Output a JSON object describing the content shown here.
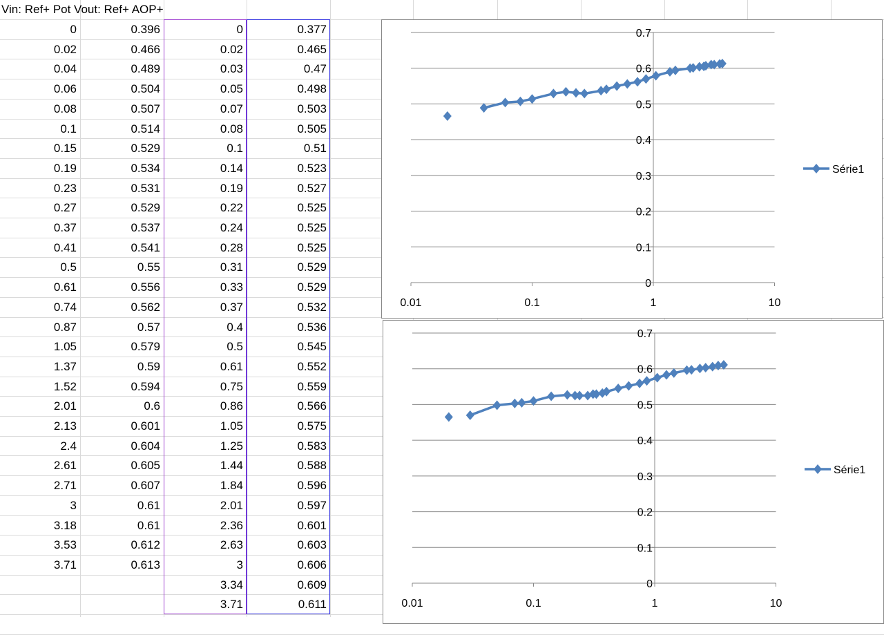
{
  "sheet": {
    "title": "Vin: Ref+ Pot Vout: Ref+ AOP+",
    "colA": [
      "0",
      "0.02",
      "0.04",
      "0.06",
      "0.08",
      "0.1",
      "0.15",
      "0.19",
      "0.23",
      "0.27",
      "0.37",
      "0.41",
      "0.5",
      "0.61",
      "0.74",
      "0.87",
      "1.05",
      "1.37",
      "1.52",
      "2.01",
      "2.13",
      "2.4",
      "2.61",
      "2.71",
      "3",
      "3.18",
      "3.53",
      "3.71"
    ],
    "colB": [
      "0.396",
      "0.466",
      "0.489",
      "0.504",
      "0.507",
      "0.514",
      "0.529",
      "0.534",
      "0.531",
      "0.529",
      "0.537",
      "0.541",
      "0.55",
      "0.556",
      "0.562",
      "0.57",
      "0.579",
      "0.59",
      "0.594",
      "0.6",
      "0.601",
      "0.604",
      "0.605",
      "0.607",
      "0.61",
      "0.61",
      "0.612",
      "0.613"
    ],
    "colC": [
      "0",
      "0.02",
      "0.03",
      "0.05",
      "0.07",
      "0.08",
      "0.1",
      "0.14",
      "0.19",
      "0.22",
      "0.24",
      "0.28",
      "0.31",
      "0.33",
      "0.37",
      "0.4",
      "0.5",
      "0.61",
      "0.75",
      "0.86",
      "1.05",
      "1.25",
      "1.44",
      "1.84",
      "2.01",
      "2.36",
      "2.63",
      "3",
      "3.34",
      "3.71"
    ],
    "colD": [
      "0.377",
      "0.465",
      "0.47",
      "0.498",
      "0.503",
      "0.505",
      "0.51",
      "0.523",
      "0.527",
      "0.525",
      "0.525",
      "0.525",
      "0.529",
      "0.529",
      "0.532",
      "0.536",
      "0.545",
      "0.552",
      "0.559",
      "0.566",
      "0.575",
      "0.583",
      "0.588",
      "0.596",
      "0.597",
      "0.601",
      "0.603",
      "0.606",
      "0.609",
      "0.611"
    ]
  },
  "chart_data": [
    {
      "type": "scatter",
      "series_style": "line-with-diamond-markers",
      "color": "#4f81bd",
      "xscale": "log",
      "xlim": [
        0.01,
        10
      ],
      "ylim": [
        0,
        0.7
      ],
      "xticks": [
        "0.01",
        "0.1",
        "1",
        "10"
      ],
      "yticks": [
        "0",
        "0.1",
        "0.2",
        "0.3",
        "0.4",
        "0.5",
        "0.6",
        "0.7"
      ],
      "legend": "right",
      "series": [
        {
          "name": "Série1",
          "source": "colA/colB"
        }
      ]
    },
    {
      "type": "scatter",
      "series_style": "line-with-diamond-markers",
      "color": "#4f81bd",
      "xscale": "log",
      "xlim": [
        0.01,
        10
      ],
      "ylim": [
        0,
        0.7
      ],
      "xticks": [
        "0.01",
        "0.1",
        "1",
        "10"
      ],
      "yticks": [
        "0",
        "0.1",
        "0.2",
        "0.3",
        "0.4",
        "0.5",
        "0.6",
        "0.7"
      ],
      "legend": "right",
      "series": [
        {
          "name": "Série1",
          "source": "colC/colD"
        }
      ]
    }
  ]
}
